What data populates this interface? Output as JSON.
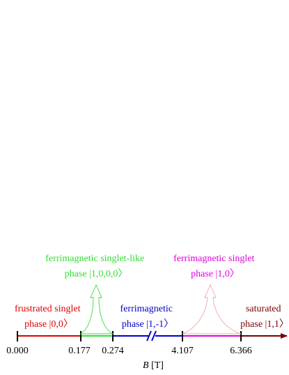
{
  "axis": {
    "label_var": "B",
    "label_unit": " [T]",
    "ticks": [
      "0.000",
      "0.177",
      "0.274",
      "4.107",
      "6.366"
    ]
  },
  "phases": [
    {
      "line1": "frustrated singlet",
      "line2": "phase |0,0〉",
      "color": "#e00000"
    },
    {
      "line1": "ferrimagnetic singlet-like",
      "line2": "phase |1,0,0,0〉",
      "color": "#33dd33"
    },
    {
      "line1": "ferrimagnetic",
      "line2": "phase |1,-1〉",
      "color": "#0000cc"
    },
    {
      "line1": "ferrimagnetic singlet",
      "line2": "phase |1,0〉",
      "color": "#e000e0"
    },
    {
      "line1": "saturated",
      "line2": "phase |1,1〉",
      "color": "#7a0000"
    }
  ],
  "colors": {
    "arrow_green": "#33dd33",
    "arrow_pink": "#f4a0b0",
    "axis_end": "#7a0000"
  }
}
